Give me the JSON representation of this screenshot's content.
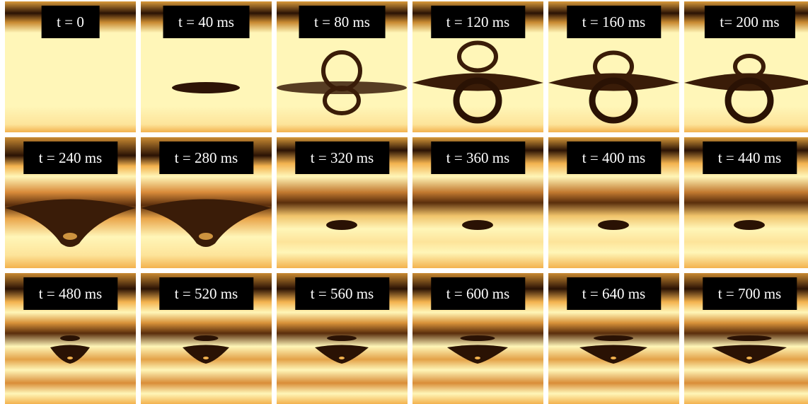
{
  "figure": {
    "background": "#ffffff",
    "label_background": "#000000",
    "label_color": "#ffffff",
    "palette": {
      "light": "#fff6b8",
      "mid": "#f3b24e",
      "dark": "#3a1c08"
    },
    "panels": [
      {
        "label": "t  =  0",
        "stage": "initial"
      },
      {
        "label": "t = 40 ms",
        "stage": "drop-flattening"
      },
      {
        "label": "t = 80 ms",
        "stage": "bubble-forming"
      },
      {
        "label": "t = 120 ms",
        "stage": "bubble-max"
      },
      {
        "label": "t = 160 ms",
        "stage": "bubble-max"
      },
      {
        "label": "t= 200 ms",
        "stage": "bubble-shrinking"
      },
      {
        "label": "t = 240 ms",
        "stage": "cone-collapse"
      },
      {
        "label": "t = 280 ms",
        "stage": "cone-collapse"
      },
      {
        "label": "t = 320 ms",
        "stage": "ripples"
      },
      {
        "label": "t = 360 ms",
        "stage": "ripples"
      },
      {
        "label": "t = 400 ms",
        "stage": "ripples"
      },
      {
        "label": "t = 440 ms",
        "stage": "ripples"
      },
      {
        "label": "t = 480 ms",
        "stage": "settling"
      },
      {
        "label": "t = 520 ms",
        "stage": "settling"
      },
      {
        "label": "t = 560 ms",
        "stage": "settling"
      },
      {
        "label": "t = 600 ms",
        "stage": "settling"
      },
      {
        "label": "t = 640 ms",
        "stage": "settling"
      },
      {
        "label": "t = 700 ms",
        "stage": "settling"
      }
    ]
  }
}
